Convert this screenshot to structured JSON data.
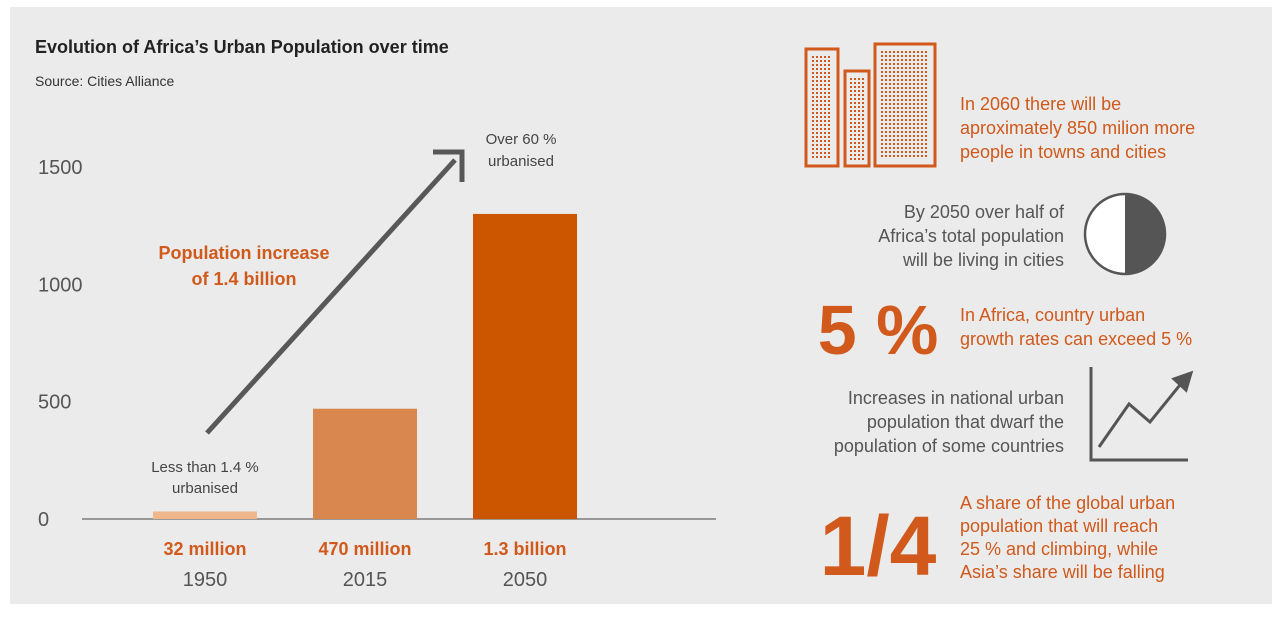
{
  "title": "Evolution of Africa’s Urban Population over time",
  "source": "Source: Cities Alliance",
  "chart_data": {
    "type": "bar",
    "categories": [
      "1950",
      "2015",
      "2050"
    ],
    "values": [
      32,
      470,
      1300
    ],
    "value_labels": [
      "32 million",
      "470 million",
      "1.3 billion"
    ],
    "bar_colors": [
      "#f0b68c",
      "#d9874e",
      "#cc5500"
    ],
    "yticks": [
      0,
      500,
      1000,
      1500
    ],
    "ylim": [
      0,
      1500
    ],
    "annotations": {
      "low": [
        "Less than 1.4 %",
        "urbanised"
      ],
      "high": [
        "Over 60 %",
        "urbanised"
      ],
      "increase": [
        "Population increase",
        "of 1.4 billion"
      ]
    }
  },
  "facts": {
    "f1": [
      "In 2060 there will be",
      "aproximately 850 milion more",
      "people in towns and cities"
    ],
    "f2": [
      "By 2050 over half of",
      "Africa’s total population",
      "will be living in cities"
    ],
    "f3_big": "5 %",
    "f3": [
      "In Africa, country urban",
      "growth rates can exceed 5 %"
    ],
    "f4": [
      "Increases in national urban",
      "population that dwarf the",
      "population of some countries"
    ],
    "f5_big": "1/4",
    "f5": [
      "A share of the global urban",
      "population that will reach",
      "25 % and climbing, while",
      "Asia’s share will be falling"
    ]
  },
  "colors": {
    "accent": "#d0591b",
    "icon_gray": "#555555"
  }
}
